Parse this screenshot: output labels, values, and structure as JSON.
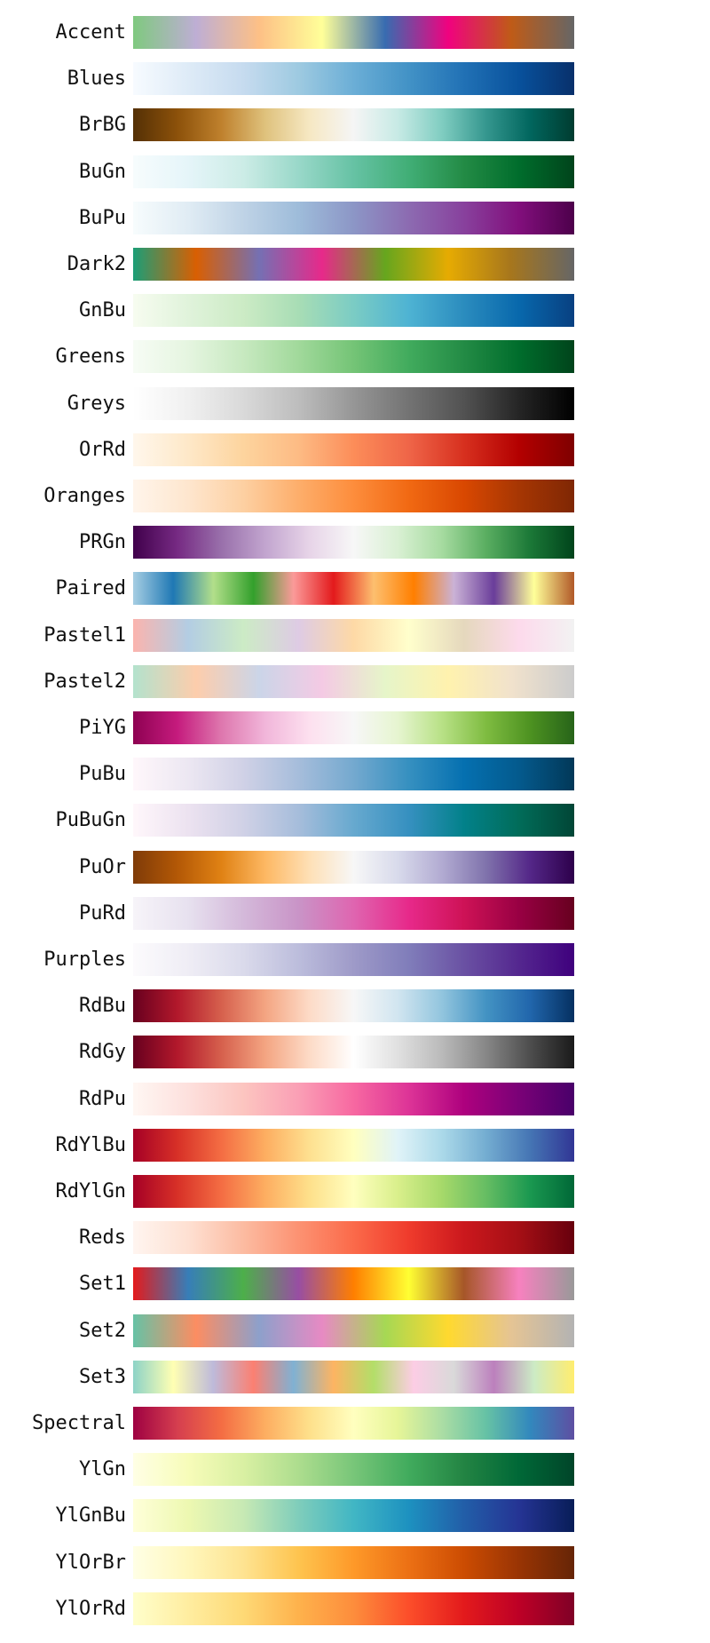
{
  "chart_data": {
    "type": "colormap-swatches",
    "colormaps": [
      {
        "name": "Accent",
        "colors": [
          "#7fc97f",
          "#beaed4",
          "#fdc086",
          "#ffff99",
          "#386cb0",
          "#f0027f",
          "#bf5b17",
          "#666666"
        ]
      },
      {
        "name": "Blues",
        "colors": [
          "#f7fbff",
          "#deebf7",
          "#c6dbef",
          "#9ecae1",
          "#6baed6",
          "#4292c6",
          "#2171b5",
          "#08519c",
          "#08306b"
        ]
      },
      {
        "name": "BrBG",
        "colors": [
          "#543005",
          "#8c510a",
          "#bf812d",
          "#dfc27d",
          "#f6e8c3",
          "#f5f5f5",
          "#c7eae5",
          "#80cdc1",
          "#35978f",
          "#01665e",
          "#003c30"
        ]
      },
      {
        "name": "BuGn",
        "colors": [
          "#f7fcfd",
          "#e5f5f9",
          "#ccece6",
          "#99d8c9",
          "#66c2a4",
          "#41ae76",
          "#238b45",
          "#006d2c",
          "#00441b"
        ]
      },
      {
        "name": "BuPu",
        "colors": [
          "#f7fcfd",
          "#e0ecf4",
          "#bfd3e6",
          "#9ebcda",
          "#8c96c6",
          "#8c6bb1",
          "#88419d",
          "#810f7c",
          "#4d004b"
        ]
      },
      {
        "name": "Dark2",
        "colors": [
          "#1b9e77",
          "#d95f02",
          "#7570b3",
          "#e7298a",
          "#66a61e",
          "#e6ab02",
          "#a6761d",
          "#666666"
        ]
      },
      {
        "name": "GnBu",
        "colors": [
          "#f7fcf0",
          "#e0f3db",
          "#ccebc5",
          "#a8ddb5",
          "#7bccc4",
          "#4eb3d3",
          "#2b8cbe",
          "#0868ac",
          "#084081"
        ]
      },
      {
        "name": "Greens",
        "colors": [
          "#f7fcf5",
          "#e5f5e0",
          "#c7e9c0",
          "#a1d99b",
          "#74c476",
          "#41ab5d",
          "#238b45",
          "#006d2c",
          "#00441b"
        ]
      },
      {
        "name": "Greys",
        "colors": [
          "#ffffff",
          "#f0f0f0",
          "#d9d9d9",
          "#bdbdbd",
          "#969696",
          "#737373",
          "#525252",
          "#252525",
          "#000000"
        ]
      },
      {
        "name": "OrRd",
        "colors": [
          "#fff7ec",
          "#fee8c8",
          "#fdd49e",
          "#fdbb84",
          "#fc8d59",
          "#ef6548",
          "#d7301f",
          "#b30000",
          "#7f0000"
        ]
      },
      {
        "name": "Oranges",
        "colors": [
          "#fff5eb",
          "#fee6ce",
          "#fdd0a2",
          "#fdae6b",
          "#fd8d3c",
          "#f16913",
          "#d94801",
          "#a63603",
          "#7f2704"
        ]
      },
      {
        "name": "PRGn",
        "colors": [
          "#40004b",
          "#762a83",
          "#9970ab",
          "#c2a5cf",
          "#e7d4e8",
          "#f7f7f7",
          "#d9f0d3",
          "#a6dba0",
          "#5aae61",
          "#1b7837",
          "#00441b"
        ]
      },
      {
        "name": "Paired",
        "colors": [
          "#a6cee3",
          "#1f78b4",
          "#b2df8a",
          "#33a02c",
          "#fb9a99",
          "#e31a1c",
          "#fdbf6f",
          "#ff7f00",
          "#cab2d6",
          "#6a3d9a",
          "#ffff99",
          "#b15928"
        ]
      },
      {
        "name": "Pastel1",
        "colors": [
          "#fbb4ae",
          "#b3cde3",
          "#ccebc5",
          "#decbe4",
          "#fed9a6",
          "#ffffcc",
          "#e5d8bd",
          "#fddaec",
          "#f2f2f2"
        ]
      },
      {
        "name": "Pastel2",
        "colors": [
          "#b3e2cd",
          "#fdcdac",
          "#cbd5e8",
          "#f4cae4",
          "#e6f5c9",
          "#fff2ae",
          "#f1e2cc",
          "#cccccc"
        ]
      },
      {
        "name": "PiYG",
        "colors": [
          "#8e0152",
          "#c51b7d",
          "#de77ae",
          "#f1b6da",
          "#fde0ef",
          "#f7f7f7",
          "#e6f5d0",
          "#b8e186",
          "#7fbc41",
          "#4d9221",
          "#276419"
        ]
      },
      {
        "name": "PuBu",
        "colors": [
          "#fff7fb",
          "#ece7f2",
          "#d0d1e6",
          "#a6bddb",
          "#74a9cf",
          "#3690c0",
          "#0570b0",
          "#045a8d",
          "#023858"
        ]
      },
      {
        "name": "PuBuGn",
        "colors": [
          "#fff7fb",
          "#ece2f0",
          "#d0d1e6",
          "#a6bddb",
          "#67a9cf",
          "#3690c0",
          "#02818a",
          "#016c59",
          "#014636"
        ]
      },
      {
        "name": "PuOr",
        "colors": [
          "#7f3b08",
          "#b35806",
          "#e08214",
          "#fdb863",
          "#fee0b6",
          "#f7f7f7",
          "#d8daeb",
          "#b2abd2",
          "#8073ac",
          "#542788",
          "#2d004b"
        ]
      },
      {
        "name": "PuRd",
        "colors": [
          "#f7f4f9",
          "#e7e1ef",
          "#d4b9da",
          "#c994c7",
          "#df65b0",
          "#e7298a",
          "#ce1256",
          "#980043",
          "#67001f"
        ]
      },
      {
        "name": "Purples",
        "colors": [
          "#fcfbfd",
          "#efedf5",
          "#dadaeb",
          "#bcbddc",
          "#9e9ac8",
          "#807dba",
          "#6a51a3",
          "#54278f",
          "#3f007d"
        ]
      },
      {
        "name": "RdBu",
        "colors": [
          "#67001f",
          "#b2182b",
          "#d6604d",
          "#f4a582",
          "#fddbc7",
          "#f7f7f7",
          "#d1e5f0",
          "#92c5de",
          "#4393c3",
          "#2166ac",
          "#053061"
        ]
      },
      {
        "name": "RdGy",
        "colors": [
          "#67001f",
          "#b2182b",
          "#d6604d",
          "#f4a582",
          "#fddbc7",
          "#ffffff",
          "#e0e0e0",
          "#bababa",
          "#878787",
          "#4d4d4d",
          "#1a1a1a"
        ]
      },
      {
        "name": "RdPu",
        "colors": [
          "#fff7f3",
          "#fde0dd",
          "#fcc5c0",
          "#fa9fb5",
          "#f768a1",
          "#dd3497",
          "#ae017e",
          "#7a0177",
          "#49006a"
        ]
      },
      {
        "name": "RdYlBu",
        "colors": [
          "#a50026",
          "#d73027",
          "#f46d43",
          "#fdae61",
          "#fee090",
          "#ffffbf",
          "#e0f3f8",
          "#abd9e9",
          "#74add1",
          "#4575b4",
          "#313695"
        ]
      },
      {
        "name": "RdYlGn",
        "colors": [
          "#a50026",
          "#d73027",
          "#f46d43",
          "#fdae61",
          "#fee08b",
          "#ffffbf",
          "#d9ef8b",
          "#a6d96a",
          "#66bd63",
          "#1a9850",
          "#006837"
        ]
      },
      {
        "name": "Reds",
        "colors": [
          "#fff5f0",
          "#fee0d2",
          "#fcbba1",
          "#fc9272",
          "#fb6a4a",
          "#ef3b2c",
          "#cb181d",
          "#a50f15",
          "#67000d"
        ]
      },
      {
        "name": "Set1",
        "colors": [
          "#e41a1c",
          "#377eb8",
          "#4daf4a",
          "#984ea3",
          "#ff7f00",
          "#ffff33",
          "#a65628",
          "#f781bf",
          "#999999"
        ]
      },
      {
        "name": "Set2",
        "colors": [
          "#66c2a5",
          "#fc8d62",
          "#8da0cb",
          "#e78ac3",
          "#a6d854",
          "#ffd92f",
          "#e5c494",
          "#b3b3b3"
        ]
      },
      {
        "name": "Set3",
        "colors": [
          "#8dd3c7",
          "#ffffb3",
          "#bebada",
          "#fb8072",
          "#80b1d3",
          "#fdb462",
          "#b3de69",
          "#fccde5",
          "#d9d9d9",
          "#bc80bd",
          "#ccebc5",
          "#ffed6f"
        ]
      },
      {
        "name": "Spectral",
        "colors": [
          "#9e0142",
          "#d53e4f",
          "#f46d43",
          "#fdae61",
          "#fee08b",
          "#ffffbf",
          "#e6f598",
          "#abdda4",
          "#66c2a5",
          "#3288bd",
          "#5e4fa2"
        ]
      },
      {
        "name": "YlGn",
        "colors": [
          "#ffffe5",
          "#f7fcb9",
          "#d9f0a3",
          "#addd8e",
          "#78c679",
          "#41ab5d",
          "#238443",
          "#006837",
          "#004529"
        ]
      },
      {
        "name": "YlGnBu",
        "colors": [
          "#ffffd9",
          "#edf8b1",
          "#c7e9b4",
          "#7fcdbb",
          "#41b6c4",
          "#1d91c0",
          "#225ea8",
          "#253494",
          "#081d58"
        ]
      },
      {
        "name": "YlOrBr",
        "colors": [
          "#ffffe5",
          "#fff7bc",
          "#fee391",
          "#fec44f",
          "#fe9929",
          "#ec7014",
          "#cc4c02",
          "#993404",
          "#662506"
        ]
      },
      {
        "name": "YlOrRd",
        "colors": [
          "#ffffcc",
          "#ffeda0",
          "#fed976",
          "#feb24c",
          "#fd8d3c",
          "#fc4e2a",
          "#e31a1c",
          "#bd0026",
          "#800026"
        ]
      }
    ]
  }
}
